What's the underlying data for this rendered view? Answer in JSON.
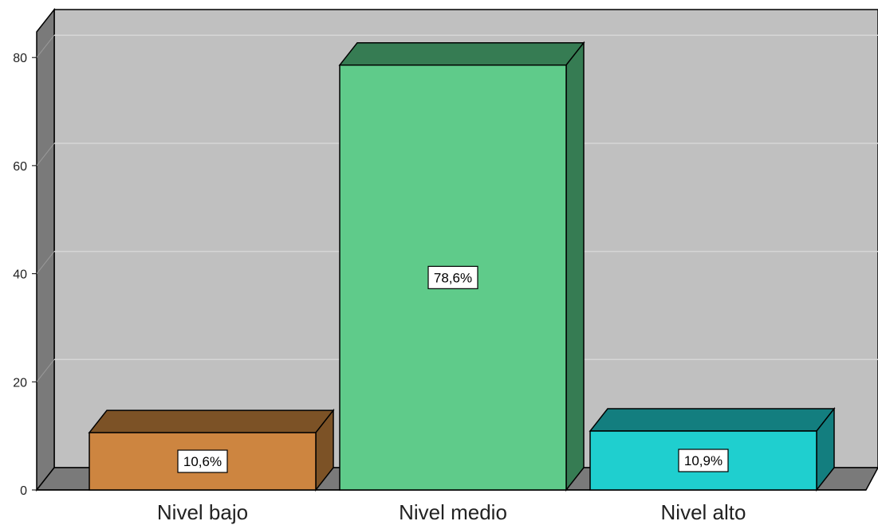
{
  "chart_data": {
    "type": "bar",
    "style": "3d",
    "categories": [
      "Nivel bajo",
      "Nivel medio",
      "Nivel alto"
    ],
    "values": [
      10.6,
      78.6,
      10.9
    ],
    "data_labels": [
      "10,6%",
      "78,6%",
      "10,9%"
    ],
    "y_ticks": [
      "0",
      "20",
      "40",
      "60",
      "80"
    ],
    "ylim": [
      0,
      80
    ],
    "grid": true,
    "bar_colors": [
      "#cd8540",
      "#5fcb8a",
      "#1fcfcf"
    ],
    "bar_top_colors": [
      "#7c5226",
      "#367c53",
      "#137e7f"
    ],
    "bar_side_colors": [
      "#7c5226",
      "#367c53",
      "#137e7f"
    ],
    "plot_background": "#c0c0c0",
    "wall_shade": "#7a7a7a"
  }
}
